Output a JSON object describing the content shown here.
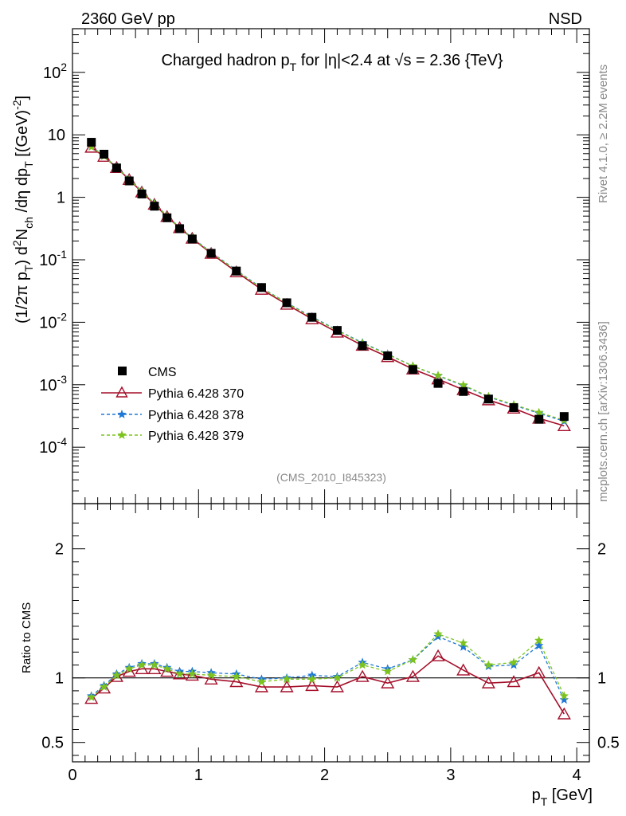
{
  "header": {
    "left_label": "2360 GeV pp",
    "right_label": "NSD"
  },
  "side_labels": {
    "rivet": "Rivet 4.1.0, ≥ 2.2M events",
    "mcplots": "mcplots.cern.ch [arXiv:1306.3436]"
  },
  "chart_data": [
    {
      "type": "scatter",
      "title": "Charged hadron pT for |η|<2.4 at √s = 2.36 {TeV}",
      "title_parts": {
        "a": "Charged hadron p",
        "sub": "T",
        "b": " for |η|<2.4 at √s = 2.36 {TeV}"
      },
      "watermark": "(CMS_2010_I845323)",
      "ylabel": "(1/2π pT) d2Nch/dη dpT [(GeV)-2]",
      "ylabel_parts": {
        "p1": "(1/2π p",
        "s1": "T",
        "p2": ") d",
        "sup2": "2",
        "p3": "N",
        "s2": "ch",
        "p4": " /dη  dp",
        "s3": "T",
        "p5": " [(GeV)",
        "sup3": "-2",
        "p6": "]"
      },
      "yscale": "log",
      "ylim": [
        1.25e-05,
        500
      ],
      "xlim": [
        0,
        4.1
      ],
      "yticks": [
        {
          "value": 0.0001,
          "base": "10",
          "exp": "-4"
        },
        {
          "value": 0.001,
          "base": "10",
          "exp": "-3"
        },
        {
          "value": 0.01,
          "base": "10",
          "exp": "-2"
        },
        {
          "value": 0.1,
          "base": "10",
          "exp": "-1"
        },
        {
          "value": 1,
          "base": "1",
          "exp": ""
        },
        {
          "value": 10,
          "base": "10",
          "exp": ""
        },
        {
          "value": 100,
          "base": "10",
          "exp": "2"
        }
      ],
      "legend_position": "bottom-left",
      "x": [
        0.15,
        0.25,
        0.35,
        0.45,
        0.55,
        0.65,
        0.75,
        0.85,
        0.95,
        1.1,
        1.3,
        1.5,
        1.7,
        1.9,
        2.1,
        2.3,
        2.5,
        2.7,
        2.9,
        3.1,
        3.3,
        3.5,
        3.7,
        3.9
      ],
      "series": [
        {
          "name": "CMS",
          "marker": "square",
          "color": "#000000",
          "values": [
            7.6,
            4.9,
            2.95,
            1.83,
            1.13,
            0.72,
            0.47,
            0.315,
            0.215,
            0.127,
            0.066,
            0.036,
            0.0205,
            0.012,
            0.0074,
            0.0042,
            0.0029,
            0.00175,
            0.00105,
            0.00078,
            0.00059,
            0.00043,
            0.00028,
            0.00031
          ]
        },
        {
          "name": "Pythia 6.428 370",
          "marker": "triangle-open",
          "color": "#a50f2a",
          "values": [
            6.3,
            4.5,
            2.99,
            1.92,
            1.21,
            0.77,
            0.49,
            0.325,
            0.22,
            0.126,
            0.064,
            0.0335,
            0.0193,
            0.0113,
            0.0069,
            0.00425,
            0.0028,
            0.00178,
            0.00123,
            0.00083,
            0.00057,
            0.00042,
            0.00029,
            0.00022
          ]
        },
        {
          "name": "Pythia 6.428 378",
          "marker": "star",
          "color": "#1f78d6",
          "values": [
            6.5,
            4.6,
            3.04,
            1.97,
            1.26,
            0.8,
            0.505,
            0.33,
            0.225,
            0.132,
            0.068,
            0.0355,
            0.0205,
            0.0122,
            0.0075,
            0.0047,
            0.0031,
            0.00199,
            0.00139,
            0.00097,
            0.00064,
            0.00047,
            0.00035,
            0.00026
          ]
        },
        {
          "name": "Pythia 6.428 379",
          "marker": "star",
          "color": "#7dc31f",
          "values": [
            6.4,
            4.55,
            3.0,
            1.95,
            1.24,
            0.79,
            0.5,
            0.325,
            0.222,
            0.13,
            0.067,
            0.035,
            0.0203,
            0.0119,
            0.0074,
            0.0046,
            0.00305,
            0.00199,
            0.00141,
            0.00099,
            0.00065,
            0.00048,
            0.00036,
            0.00027
          ]
        }
      ]
    },
    {
      "type": "line",
      "ylabel": "Ratio to CMS",
      "xlabel": "pT [GeV]",
      "xlabel_parts": {
        "a": "p",
        "sub": "T",
        "b": " [GeV]"
      },
      "ylim": [
        0.35,
        2.35
      ],
      "xlim": [
        0,
        4.1
      ],
      "yticks": [
        {
          "value": 0.5,
          "label": "0.5"
        },
        {
          "value": 1,
          "label": "1"
        },
        {
          "value": 2,
          "label": "2"
        }
      ],
      "xticks": [
        {
          "value": 0,
          "label": "0"
        },
        {
          "value": 1,
          "label": "1"
        },
        {
          "value": 2,
          "label": "2"
        },
        {
          "value": 3,
          "label": "3"
        },
        {
          "value": 4,
          "label": "4"
        }
      ],
      "reference_line": 1,
      "x": [
        0.15,
        0.25,
        0.35,
        0.45,
        0.55,
        0.65,
        0.75,
        0.85,
        0.95,
        1.1,
        1.3,
        1.5,
        1.7,
        1.9,
        2.1,
        2.3,
        2.5,
        2.7,
        2.9,
        3.1,
        3.3,
        3.5,
        3.7,
        3.9
      ],
      "series": [
        {
          "name": "Pythia 6.428 370",
          "marker": "triangle-open",
          "color": "#a50f2a",
          "values": [
            0.84,
            0.92,
            1.01,
            1.05,
            1.07,
            1.07,
            1.05,
            1.03,
            1.02,
            0.99,
            0.97,
            0.93,
            0.93,
            0.94,
            0.93,
            1.01,
            0.96,
            1.01,
            1.17,
            1.06,
            0.96,
            0.97,
            1.04,
            0.72
          ]
        },
        {
          "name": "Pythia 6.428 378",
          "marker": "star",
          "color": "#1f78d6",
          "values": [
            0.86,
            0.94,
            1.03,
            1.08,
            1.11,
            1.11,
            1.08,
            1.05,
            1.05,
            1.04,
            1.03,
            0.99,
            1.0,
            1.02,
            1.01,
            1.12,
            1.07,
            1.14,
            1.32,
            1.24,
            1.09,
            1.1,
            1.25,
            0.83
          ]
        },
        {
          "name": "Pythia 6.428 379",
          "marker": "star",
          "color": "#7dc31f",
          "values": [
            0.85,
            0.93,
            1.02,
            1.07,
            1.1,
            1.1,
            1.07,
            1.03,
            1.03,
            1.02,
            1.01,
            0.97,
            0.99,
            0.99,
            1.0,
            1.1,
            1.05,
            1.14,
            1.34,
            1.27,
            1.1,
            1.12,
            1.29,
            0.86
          ]
        }
      ]
    }
  ]
}
